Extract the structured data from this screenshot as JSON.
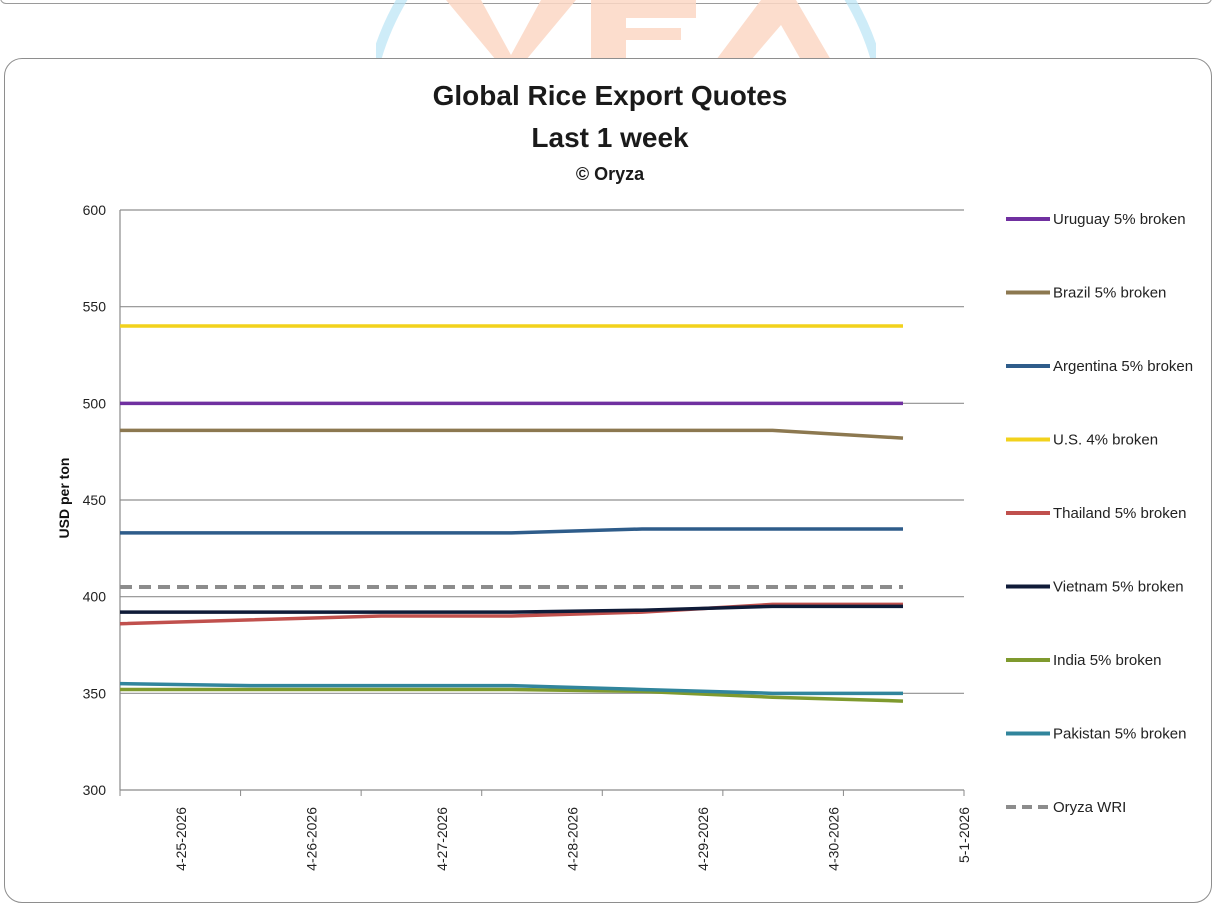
{
  "chart_data": {
    "type": "line",
    "title": "Global Rice Export Quotes",
    "subtitle": "Last 1 week",
    "credit": "© Oryza",
    "xlabel": "",
    "ylabel": "USD per ton",
    "ylim": [
      300,
      600
    ],
    "yticks": [
      300,
      350,
      400,
      450,
      500,
      550,
      600
    ],
    "categories": [
      "4-25-2026",
      "4-26-2026",
      "4-27-2026",
      "4-28-2026",
      "4-29-2026",
      "4-30-2026",
      "5-1-2026"
    ],
    "grid": "horizontal",
    "legend_position": "right",
    "series": [
      {
        "name": "Uruguay 5% broken",
        "color": "#7030a0",
        "dash": false,
        "values": [
          500,
          500,
          500,
          500,
          500,
          500,
          500
        ]
      },
      {
        "name": "Brazil 5% broken",
        "color": "#8c7850",
        "dash": false,
        "values": [
          486,
          486,
          486,
          486,
          486,
          486,
          482
        ]
      },
      {
        "name": "Argentina 5% broken",
        "color": "#2e5c8a",
        "dash": false,
        "values": [
          433,
          433,
          433,
          433,
          435,
          435,
          435
        ]
      },
      {
        "name": "U.S. 4% broken",
        "color": "#f2d21c",
        "dash": false,
        "values": [
          540,
          540,
          540,
          540,
          540,
          540,
          540
        ]
      },
      {
        "name": "Thailand 5% broken",
        "color": "#c0504d",
        "dash": false,
        "values": [
          386,
          388,
          390,
          390,
          392,
          396,
          396
        ]
      },
      {
        "name": "Vietnam 5% broken",
        "color": "#0f1b38",
        "dash": false,
        "values": [
          392,
          392,
          392,
          392,
          393,
          395,
          395
        ]
      },
      {
        "name": "India 5% broken",
        "color": "#7f9a2e",
        "dash": false,
        "values": [
          352,
          352,
          352,
          352,
          351,
          348,
          346
        ]
      },
      {
        "name": "Pakistan 5% broken",
        "color": "#31859c",
        "dash": false,
        "values": [
          355,
          354,
          354,
          354,
          352,
          350,
          350
        ]
      },
      {
        "name": "Oryza WRI",
        "color": "#8c8c8c",
        "dash": true,
        "values": [
          405,
          405,
          405,
          405,
          405,
          405,
          405
        ]
      }
    ]
  }
}
